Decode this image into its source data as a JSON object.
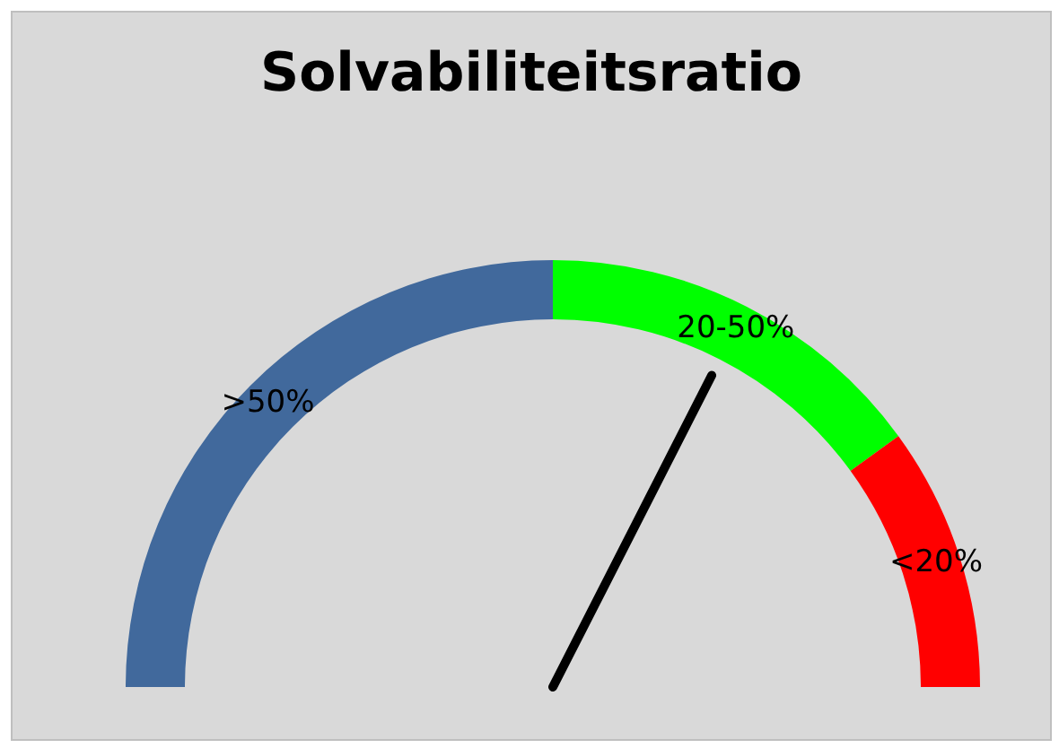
{
  "chart_data": {
    "type": "donut",
    "title": "Solvabiliteitsratio",
    "categories": [
      ">50%",
      "20-50%",
      "<20%"
    ],
    "values": [
      50,
      30,
      20
    ],
    "colors": [
      "#41699c",
      "#00ff00",
      "#ff0000"
    ],
    "needle": "20-50%"
  }
}
